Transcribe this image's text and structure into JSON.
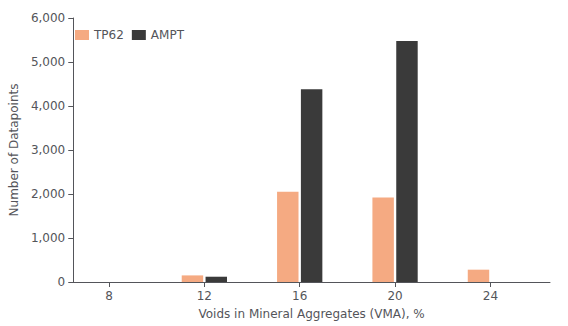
{
  "chart_data": {
    "type": "bar",
    "x": [
      8,
      12,
      16,
      20,
      24
    ],
    "series": [
      {
        "name": "TP62",
        "color": "#F5AA82",
        "values": [
          0,
          150,
          2050,
          1920,
          280
        ]
      },
      {
        "name": "AMPT",
        "color": "#3A3A3A",
        "values": [
          0,
          120,
          4380,
          5480,
          0
        ]
      }
    ],
    "xlabel": "Voids in Mineral Aggregates (VMA), %",
    "ylabel": "Number of Datapoints",
    "xlim": [
      6.5,
      26.5
    ],
    "xticks": [
      8,
      12,
      16,
      20,
      24
    ],
    "ylim": [
      0,
      6000
    ],
    "yticks": [
      0,
      1000,
      2000,
      3000,
      4000,
      5000,
      6000
    ],
    "grid": false,
    "legend": "upper left"
  }
}
